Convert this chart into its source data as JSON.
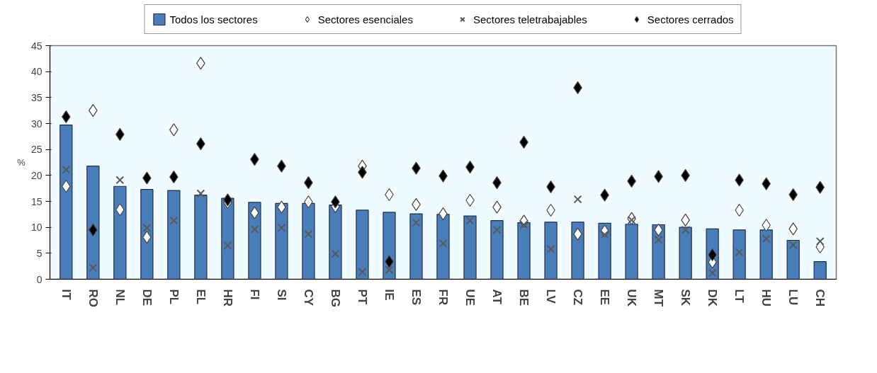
{
  "chart_data": {
    "type": "bar",
    "ylabel": "%",
    "categories": [
      "IT",
      "RO",
      "NL",
      "DE",
      "PL",
      "EL",
      "HR",
      "FI",
      "SI",
      "CY",
      "BG",
      "PT",
      "IE",
      "ES",
      "FR",
      "UE",
      "AT",
      "BE",
      "LV",
      "CZ",
      "EE",
      "UK",
      "MT",
      "SK",
      "DK",
      "LT",
      "HU",
      "LU",
      "CH"
    ],
    "series": [
      {
        "name": "Todos los sectores",
        "color": "#4a7ebb",
        "values": [
          29.7,
          21.8,
          17.9,
          17.3,
          17.1,
          16.2,
          15.6,
          14.8,
          14.6,
          14.6,
          14.3,
          13.3,
          12.9,
          12.6,
          12.5,
          12.2,
          11.3,
          10.9,
          11.0,
          11.0,
          10.8,
          10.6,
          10.5,
          10.0,
          9.7,
          9.5,
          9.5,
          7.5,
          3.4
        ]
      },
      {
        "name": "Sectores esenciales",
        "type": "scatter",
        "marker": "diamond",
        "color": "#ffffff",
        "values": [
          17.9,
          32.5,
          13.4,
          8.1,
          28.8,
          41.6,
          14.8,
          12.8,
          13.9,
          14.9,
          14.0,
          21.8,
          16.3,
          14.4,
          12.6,
          15.2,
          13.9,
          11.2,
          13.3,
          8.7,
          9.3,
          11.7,
          9.5,
          11.4,
          3.3,
          13.3,
          10.4,
          9.7,
          6.2
        ]
      },
      {
        "name": "Sectores teletrabajables",
        "type": "scatter",
        "marker": "cross",
        "color": "#595959",
        "values": [
          21.1,
          2.2,
          19.1,
          9.9,
          11.3,
          16.5,
          6.5,
          9.6,
          9.9,
          8.7,
          4.9,
          1.4,
          1.8,
          10.9,
          6.9,
          11.3,
          9.5,
          10.5,
          5.8,
          15.4,
          8.6,
          11.4,
          7.6,
          9.5,
          1.2,
          5.2,
          7.8,
          6.6,
          7.3
        ]
      },
      {
        "name": "Sectores cerrados",
        "type": "scatter",
        "marker": "diamond",
        "color": "#000000",
        "values": [
          31.3,
          9.5,
          27.9,
          19.5,
          19.7,
          26.1,
          15.3,
          23.1,
          21.8,
          18.6,
          14.9,
          20.6,
          3.4,
          21.4,
          19.9,
          21.6,
          18.6,
          26.4,
          17.8,
          36.9,
          16.2,
          18.9,
          19.8,
          20.0,
          4.7,
          19.1,
          18.4,
          16.3,
          17.7
        ]
      }
    ],
    "ylim": [
      0,
      45
    ],
    "yticks": [
      0,
      5,
      10,
      15,
      20,
      25,
      30,
      35,
      40,
      45
    ],
    "grid": false,
    "legend": "top"
  }
}
